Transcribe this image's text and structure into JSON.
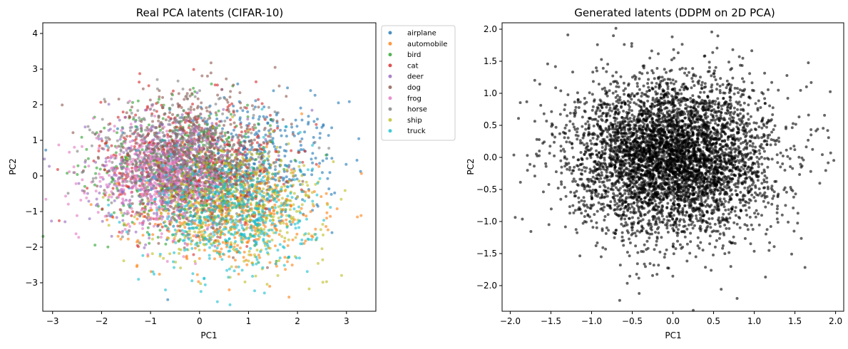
{
  "chart_data": [
    {
      "type": "scatter",
      "title": "Real PCA latents (CIFAR-10)",
      "xlabel": "PC1",
      "ylabel": "PC2",
      "xlim": [
        -3.2,
        3.6
      ],
      "ylim": [
        -3.8,
        4.3
      ],
      "xticks": [
        -3,
        -2,
        -1,
        0,
        1,
        2,
        3
      ],
      "yticks": [
        -3,
        -2,
        -1,
        0,
        1,
        2,
        3,
        4
      ],
      "grid": false,
      "legend_position": "outside upper-right",
      "marker_size": 2,
      "alpha": 0.6,
      "points_per_class_approx": 500,
      "series": [
        {
          "name": "airplane",
          "color": "#1f77b4",
          "center": [
            0.9,
            0.3
          ],
          "spread": [
            1.0,
            0.9
          ]
        },
        {
          "name": "automobile",
          "color": "#ff7f0e",
          "center": [
            0.6,
            -1.0
          ],
          "spread": [
            0.9,
            0.8
          ]
        },
        {
          "name": "bird",
          "color": "#2ca02c",
          "center": [
            -0.3,
            0.2
          ],
          "spread": [
            0.9,
            0.9
          ]
        },
        {
          "name": "cat",
          "color": "#d62728",
          "center": [
            -0.2,
            0.4
          ],
          "spread": [
            0.9,
            0.9
          ]
        },
        {
          "name": "deer",
          "color": "#9467bd",
          "center": [
            -0.6,
            0.1
          ],
          "spread": [
            0.8,
            0.8
          ]
        },
        {
          "name": "dog",
          "color": "#8c564b",
          "center": [
            -0.1,
            0.5
          ],
          "spread": [
            0.9,
            0.9
          ]
        },
        {
          "name": "frog",
          "color": "#e377c2",
          "center": [
            -0.8,
            0.0
          ],
          "spread": [
            0.7,
            0.7
          ]
        },
        {
          "name": "horse",
          "color": "#7f7f7f",
          "center": [
            -0.3,
            0.5
          ],
          "spread": [
            0.9,
            0.8
          ]
        },
        {
          "name": "ship",
          "color": "#bcbd22",
          "center": [
            0.8,
            -0.8
          ],
          "spread": [
            0.9,
            0.8
          ]
        },
        {
          "name": "truck",
          "color": "#17becf",
          "center": [
            0.7,
            -1.1
          ],
          "spread": [
            0.8,
            0.9
          ]
        }
      ]
    },
    {
      "type": "scatter",
      "title": "Generated latents (DDPM on 2D PCA)",
      "xlabel": "PC1",
      "ylabel": "PC2",
      "xlim": [
        -2.1,
        2.1
      ],
      "ylim": [
        -2.4,
        2.1
      ],
      "xticks": [
        -2.0,
        -1.5,
        -1.0,
        -0.5,
        0.0,
        0.5,
        1.0,
        1.5,
        2.0
      ],
      "yticks": [
        -2.0,
        -1.5,
        -1.0,
        -0.5,
        0.0,
        0.5,
        1.0,
        1.5,
        2.0
      ],
      "grid": false,
      "marker_size": 2,
      "alpha": 0.6,
      "series": [
        {
          "color": "#000000",
          "center": [
            0.0,
            0.0
          ],
          "spread": [
            0.6,
            0.6
          ],
          "points_approx": 5000
        }
      ]
    }
  ]
}
